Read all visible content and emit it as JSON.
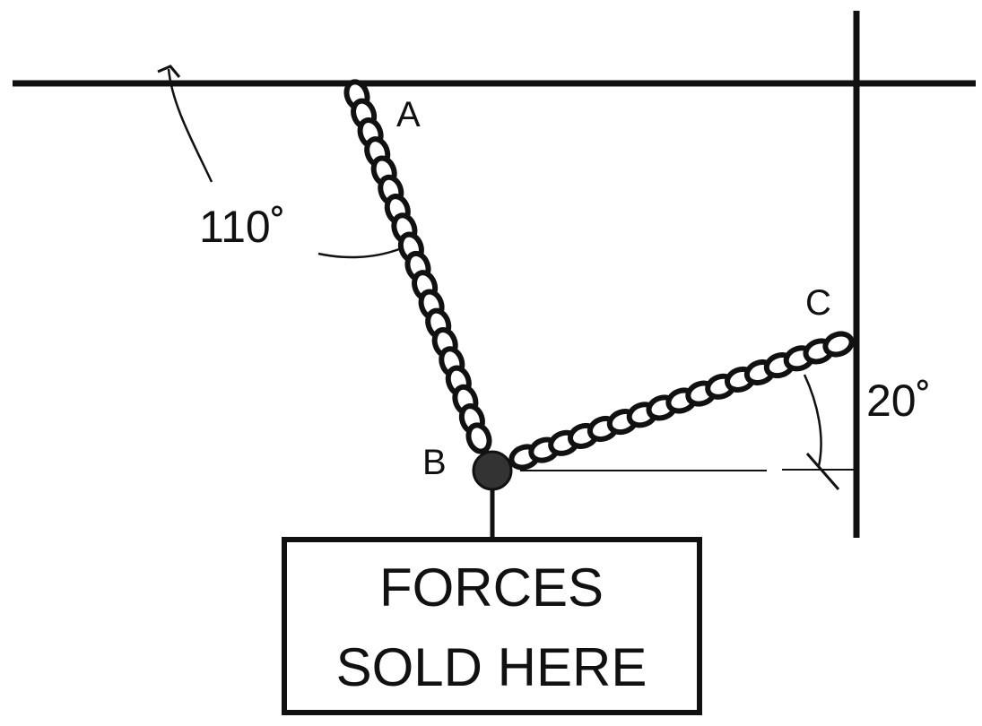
{
  "points": {
    "a": "A",
    "b": "B",
    "c": "C"
  },
  "angles": {
    "a": "110˚",
    "c": "20˚"
  },
  "sign": {
    "line1": "FORCES",
    "line2": "SOLD HERE"
  },
  "colors": {
    "ink": "#111111",
    "background": "#ffffff",
    "knot": "#333333"
  }
}
